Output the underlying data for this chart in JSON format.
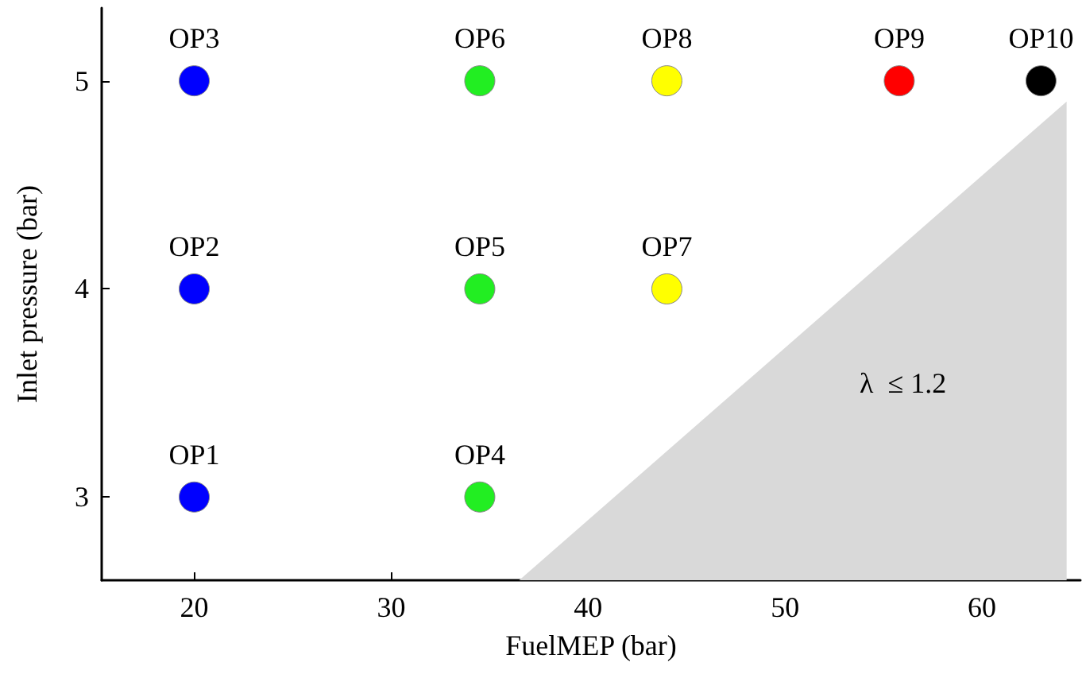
{
  "chart_data": {
    "type": "scatter",
    "xlabel": "FuelMEP (bar)",
    "ylabel": "Inlet pressure (bar)",
    "xlim": [
      15.3,
      65
    ],
    "xticks": [
      20,
      30,
      40,
      50,
      60
    ],
    "ylim": [
      2.6,
      5.35
    ],
    "yticks": [
      3,
      4,
      5
    ],
    "grid": false,
    "marker": "circle",
    "series": [
      {
        "type": "area",
        "x": [
          36.5,
          64.3
        ],
        "values": [
          2.6,
          4.9
        ],
        "color": "#d9d9d9",
        "marker": "none"
      },
      {
        "x": [
          20,
          20,
          20,
          34.5,
          34.5,
          34.5,
          44,
          44,
          55.8,
          63
        ],
        "values": [
          3,
          4,
          5,
          3,
          4,
          5,
          4,
          5,
          5,
          5
        ],
        "colors": [
          "#0000ff",
          "#0000ff",
          "#0000ff",
          "#22ee22",
          "#22ee22",
          "#22ee22",
          "#ffff00",
          "#ffff00",
          "#ff0000",
          "#000000"
        ],
        "value_labels": [
          "OP1",
          "OP2",
          "OP3",
          "OP4",
          "OP5",
          "OP6",
          "OP7",
          "OP8",
          "OP9",
          "OP10"
        ]
      }
    ],
    "annotations": [
      "λ  ≤ 1.2"
    ]
  }
}
